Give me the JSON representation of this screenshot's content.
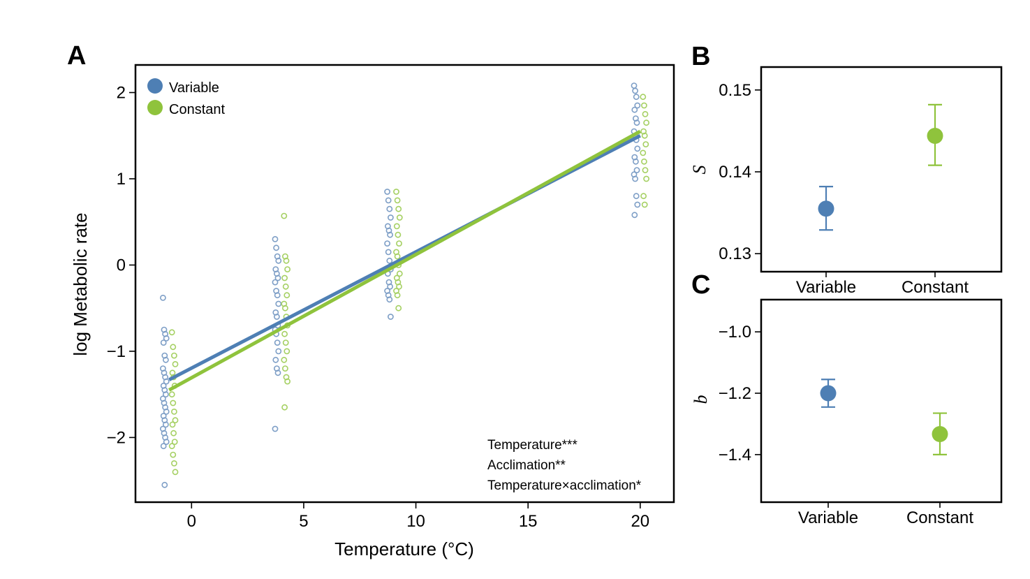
{
  "colors": {
    "variable": "#4e7fb4",
    "constant": "#8fc33c",
    "pointVariable": "#7d9ec6",
    "pointConstant": "#a5d062"
  },
  "chart_data": [
    {
      "panel": "A",
      "type": "scatter",
      "xlabel": "Temperature (°C)",
      "ylabel": "log Metabolic rate",
      "xlim": [
        -2.5,
        21.5
      ],
      "ylim": [
        -2.75,
        2.32
      ],
      "xticks": [
        0,
        5,
        10,
        15,
        20
      ],
      "xtick_labels": [
        "0",
        "5",
        "10",
        "15",
        "20"
      ],
      "yticks": [
        -2,
        -1,
        0,
        1,
        2
      ],
      "ytick_labels": [
        "−2",
        "−1",
        "0",
        "1",
        "2"
      ],
      "legend": {
        "position": "top-left",
        "entries": [
          "Variable",
          "Constant"
        ]
      },
      "annotations": [
        "Temperature***",
        "Acclimation**",
        "Temperature×acclimation*"
      ],
      "series": [
        {
          "name": "Variable",
          "color_key": "variable",
          "fit": {
            "x": [
              -1,
              20
            ],
            "y": [
              -1.33,
              1.5
            ]
          },
          "groups": [
            {
              "x": -1.2,
              "y": [
                -0.38,
                -0.75,
                -0.8,
                -0.85,
                -0.9,
                -1.05,
                -1.1,
                -1.2,
                -1.25,
                -1.3,
                -1.35,
                -1.4,
                -1.45,
                -1.5,
                -1.55,
                -1.6,
                -1.65,
                -1.7,
                -1.75,
                -1.8,
                -1.85,
                -1.9,
                -1.95,
                -2.0,
                -2.05,
                -2.1,
                -2.55
              ]
            },
            {
              "x": 3.8,
              "y": [
                0.3,
                0.2,
                0.1,
                0.05,
                -0.05,
                -0.1,
                -0.15,
                -0.2,
                -0.3,
                -0.35,
                -0.45,
                -0.55,
                -0.6,
                -0.7,
                -0.75,
                -0.8,
                -0.9,
                -1.0,
                -1.1,
                -1.2,
                -1.25,
                -1.9
              ]
            },
            {
              "x": 8.8,
              "y": [
                0.85,
                0.75,
                0.65,
                0.55,
                0.45,
                0.4,
                0.35,
                0.25,
                0.15,
                0.05,
                -0.05,
                -0.1,
                -0.2,
                -0.25,
                -0.3,
                -0.35,
                -0.4,
                -0.6
              ]
            },
            {
              "x": 19.8,
              "y": [
                2.08,
                2.02,
                1.95,
                1.85,
                1.8,
                1.7,
                1.65,
                1.55,
                1.5,
                1.45,
                1.35,
                1.25,
                1.2,
                1.1,
                1.05,
                1.0,
                0.8,
                0.7,
                0.58
              ]
            }
          ]
        },
        {
          "name": "Constant",
          "color_key": "constant",
          "fit": {
            "x": [
              -1,
              20
            ],
            "y": [
              -1.45,
              1.55
            ]
          },
          "groups": [
            {
              "x": -0.8,
              "y": [
                -0.78,
                -0.95,
                -1.05,
                -1.15,
                -1.25,
                -1.3,
                -1.4,
                -1.5,
                -1.6,
                -1.7,
                -1.8,
                -1.85,
                -1.95,
                -2.05,
                -2.1,
                -2.2,
                -2.3,
                -2.4
              ]
            },
            {
              "x": 4.2,
              "y": [
                0.57,
                0.1,
                0.05,
                -0.05,
                -0.15,
                -0.25,
                -0.35,
                -0.45,
                -0.5,
                -0.6,
                -0.7,
                -0.8,
                -0.9,
                -1.0,
                -1.1,
                -1.2,
                -1.3,
                -1.35,
                -1.65
              ]
            },
            {
              "x": 9.2,
              "y": [
                0.85,
                0.75,
                0.65,
                0.55,
                0.45,
                0.35,
                0.25,
                0.15,
                0.1,
                0.0,
                -0.1,
                -0.15,
                -0.2,
                -0.25,
                -0.3,
                -0.35,
                -0.5
              ]
            },
            {
              "x": 20.2,
              "y": [
                1.95,
                1.85,
                1.75,
                1.65,
                1.55,
                1.5,
                1.4,
                1.3,
                1.2,
                1.1,
                1.0,
                0.8,
                0.7
              ]
            }
          ]
        }
      ]
    },
    {
      "panel": "B",
      "type": "scatter",
      "ylabel": "S",
      "categories": [
        "Variable",
        "Constant"
      ],
      "ylim": [
        0.1278,
        0.1528
      ],
      "yticks": [
        0.13,
        0.14,
        0.15
      ],
      "ytick_labels": [
        "0.13",
        "0.14",
        "0.15"
      ],
      "points": [
        {
          "name": "Variable",
          "color_key": "variable",
          "value": 0.1355,
          "lower": 0.1329,
          "upper": 0.1382
        },
        {
          "name": "Constant",
          "color_key": "constant",
          "value": 0.1444,
          "lower": 0.1408,
          "upper": 0.1482
        }
      ]
    },
    {
      "panel": "C",
      "type": "scatter",
      "ylabel": "b",
      "categories": [
        "Variable",
        "Constant"
      ],
      "ylim": [
        -1.555,
        -0.895
      ],
      "yticks": [
        -1.0,
        -1.2,
        -1.4
      ],
      "ytick_labels": [
        "−1.0",
        "−1.2",
        "−1.4"
      ],
      "points": [
        {
          "name": "Variable",
          "color_key": "variable",
          "value": -1.2,
          "lower": -1.245,
          "upper": -1.155
        },
        {
          "name": "Constant",
          "color_key": "constant",
          "value": -1.333,
          "lower": -1.4,
          "upper": -1.265
        }
      ]
    }
  ]
}
